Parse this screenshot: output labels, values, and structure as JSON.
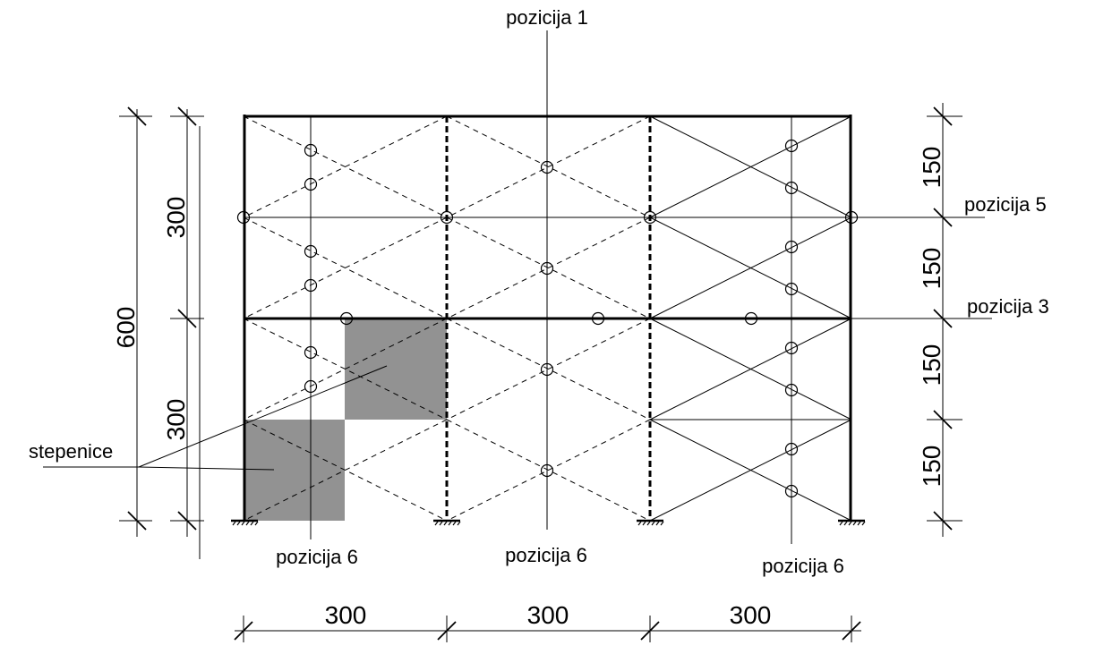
{
  "labels": {
    "pozicija_1": "pozicija 1",
    "pozicija_5": "pozicija 5",
    "pozicija_3": "pozicija 3",
    "pozicija_6_left": "pozicija 6",
    "pozicija_6_middle": "pozicija 6",
    "pozicija_6_right": "pozicija 6",
    "stepenice": "stepenice"
  },
  "dimensions": {
    "left_total": "600",
    "left_upper": "300",
    "left_lower": "300",
    "right_1": "150",
    "right_2": "150",
    "right_3": "150",
    "right_4": "150",
    "bottom_1": "300",
    "bottom_2": "300",
    "bottom_3": "300"
  }
}
